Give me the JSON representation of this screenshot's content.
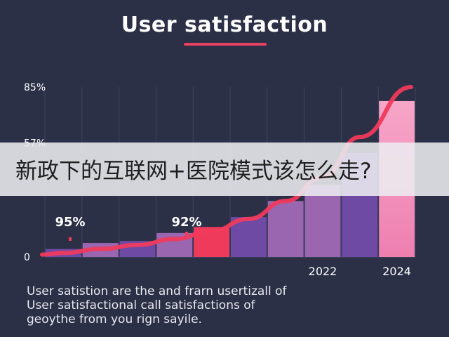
{
  "chart_data": {
    "type": "bar",
    "title": "User satisfaction",
    "y_ticks": [
      "85%",
      "57%",
      "0"
    ],
    "ylim": [
      0,
      85
    ],
    "x_ticks": [
      {
        "index": 7,
        "label": "2022"
      },
      {
        "index": 9,
        "label": "2024"
      }
    ],
    "values": [
      4,
      7,
      8,
      12,
      15,
      20,
      28,
      36,
      52,
      78
    ],
    "trend": [
      2,
      4,
      6,
      9,
      13,
      19,
      28,
      40,
      60,
      85
    ],
    "annotations": [
      {
        "index": 0,
        "label": "95%",
        "value": 10
      },
      {
        "index": 3,
        "label": "92%",
        "value": 13
      }
    ],
    "bar_colors": [
      "#6e4aa5",
      "#9a66b0",
      "#6e4aa5",
      "#9a66b0",
      "#f03a5c",
      "#6e4aa5",
      "#9a66b0",
      "#9a66b0",
      "#6e4aa5",
      "#f48fb8"
    ],
    "trend_color": "#f03a5c",
    "grid": true
  },
  "overlay_banner": "新政下的互联网+医院模式该怎么走?",
  "caption_lines": [
    "User satistion are the and frarn usertizall of",
    "User satisfactional call satisfactions of",
    "geoythe from you rign sayile."
  ]
}
